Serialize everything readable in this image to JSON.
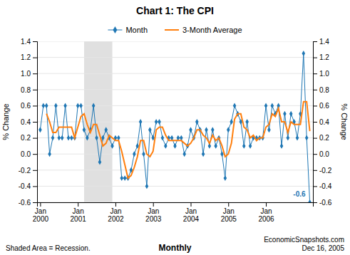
{
  "chart_data": {
    "type": "line",
    "title": "Chart 1: The CPI",
    "ylabel": "% Change",
    "y2label": "% Change",
    "categories": [
      "Jan\n2000",
      null,
      null,
      null,
      null,
      null,
      null,
      null,
      null,
      null,
      null,
      null,
      "Jan\n2001",
      null,
      null,
      null,
      null,
      null,
      null,
      null,
      null,
      null,
      null,
      null,
      "Jan\n2002",
      null,
      null,
      null,
      null,
      null,
      null,
      null,
      null,
      null,
      null,
      null,
      "Jan\n2003",
      null,
      null,
      null,
      null,
      null,
      null,
      null,
      null,
      null,
      null,
      null,
      "Jan\n2004",
      null,
      null,
      null,
      null,
      null,
      null,
      null,
      null,
      null,
      null,
      null,
      "Jan\n2005",
      null,
      null,
      null,
      null,
      null,
      null,
      null,
      null,
      null,
      null,
      null,
      "Jan\n2006",
      null,
      null,
      null,
      null,
      null,
      null,
      null,
      null,
      null,
      null,
      null,
      null,
      null,
      null
    ],
    "series": [
      {
        "name": "Month",
        "marker": "diamond",
        "values": [
          0.3,
          0.6,
          0.6,
          0.0,
          0.2,
          0.6,
          0.2,
          0.2,
          0.6,
          0.2,
          0.2,
          0.2,
          0.6,
          0.6,
          0.3,
          0.2,
          0.3,
          0.6,
          0.2,
          -0.1,
          0.2,
          0.3,
          0.2,
          0.1,
          0.2,
          0.2,
          -0.3,
          -0.3,
          -0.3,
          -0.2,
          0.0,
          0.1,
          0.4,
          0.0,
          -0.4,
          0.3,
          0.2,
          0.4,
          0.4,
          0.2,
          0.1,
          0.2,
          0.2,
          0.1,
          0.2,
          0.2,
          0.0,
          0.1,
          0.3,
          0.2,
          0.4,
          0.3,
          0.0,
          0.3,
          0.1,
          0.3,
          0.1,
          0.2,
          0.0,
          -0.3,
          0.3,
          0.4,
          0.6,
          0.5,
          0.4,
          0.1,
          0.4,
          0.1,
          0.2,
          0.2,
          0.2,
          0.2,
          0.6,
          0.3,
          0.6,
          0.5,
          0.6,
          0.1,
          0.5,
          0.2,
          0.5,
          0.4,
          0.2,
          0.5,
          1.25,
          0.2,
          -0.6
        ]
      },
      {
        "name": "3-Month Average",
        "values": [
          null,
          null,
          0.5,
          0.4,
          0.26666666666666666,
          0.26666666666666666,
          0.3333333333333333,
          0.3333333333333333,
          0.3333333333333333,
          0.3333333333333333,
          0.3333333333333333,
          0.2,
          0.3333333333333333,
          0.4666666666666667,
          0.5,
          0.36666666666666664,
          0.26666666666666666,
          0.36666666666666664,
          0.36666666666666664,
          0.23333333333333334,
          0.1,
          0.13333333333333333,
          0.23333333333333334,
          0.2,
          0.16666666666666666,
          0.16666666666666666,
          0.03333333333333333,
          -0.13333333333333333,
          -0.3,
          -0.26666666666666666,
          -0.16666666666666666,
          -0.03333333333333333,
          0.16666666666666666,
          0.16666666666666666,
          0,
          -0.03333333333333333,
          0.03333333333333333,
          0.3,
          0.3333333333333333,
          0.3333333333333333,
          0.23333333333333334,
          0.16666666666666666,
          0.16666666666666666,
          0.16666666666666666,
          0.16666666666666666,
          0.16666666666666666,
          0.13333333333333333,
          0.1,
          0.13333333333333333,
          0.2,
          0.3,
          0.3,
          0.23333333333333334,
          0.2,
          0.13333333333333333,
          0.23333333333333334,
          0.16666666666666666,
          0.2,
          0.1,
          -0.03333333333333333,
          0,
          0.13333333333333333,
          0.43333333333333335,
          0.5,
          0.5,
          0.3333333333333333,
          0.3,
          0.2,
          0.23333333333333334,
          0.16666666666666666,
          0.2,
          0.2,
          0.3333333333333333,
          0.36666666666666664,
          0.5,
          0.4666666666666667,
          0.5666666666666667,
          0.4,
          0.4,
          0.26666666666666666,
          0.4,
          0.36666666666666664,
          0.36666666666666664,
          0.36666666666666664,
          0.65,
          0.65,
          0.2833333333333333
        ]
      }
    ],
    "ylim": [
      -0.6,
      1.4
    ],
    "yticks": [
      -0.6,
      -0.4,
      -0.2,
      {
        "value": 0,
        "label": "0.0"
      },
      0.2,
      0.4,
      0.6,
      0.8,
      {
        "value": 1,
        "label": "1.0"
      },
      1.2,
      1.4
    ],
    "y2lim": [
      -0.6,
      1.4
    ],
    "y2ticks": [
      -0.6,
      -0.4,
      -0.2,
      {
        "value": 0,
        "label": "0.0"
      },
      0.2,
      0.4,
      0.6,
      0.8,
      {
        "value": 1,
        "label": "1.0"
      },
      1.2,
      1.4
    ],
    "shaded_span": {
      "start": 14,
      "end": 23
    },
    "annotations": [
      {
        "text": "-0.6",
        "index": 86
      }
    ],
    "notes": [
      "Shaded Area = Recession.",
      "Monthly",
      "EconomicSnapshots.com\nDec 16, 2005"
    ],
    "grid": true,
    "legend": "top"
  }
}
